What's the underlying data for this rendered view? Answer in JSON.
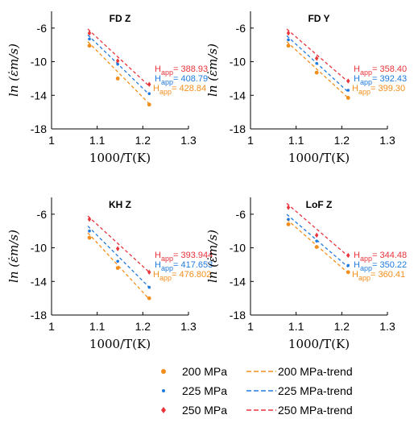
{
  "colors": {
    "series_200": "#F28E1C",
    "series_225": "#1F7BE0",
    "series_250": "#E8343A",
    "axis": "#000000"
  },
  "chart_data": [
    {
      "type": "scatter",
      "title": "FD Z",
      "xlabel": "1000/T(K)",
      "ylabel": "ln (ε̇m/s)",
      "xlim": [
        1,
        1.3
      ],
      "ylim": [
        -18,
        -4
      ],
      "xticks": [
        "1",
        "1.1",
        "1.2",
        "1.3"
      ],
      "yticks": [
        "-6",
        "-10",
        "-14",
        "-18"
      ],
      "grid": false,
      "series": [
        {
          "name": "200 MPa",
          "x": [
            1.083,
            1.145,
            1.214
          ],
          "y": [
            -8.1,
            -12.0,
            -15.1
          ],
          "trend_x": [
            1.083,
            1.214
          ],
          "trend_y": [
            -7.9,
            -15.0
          ],
          "h_label": "H",
          "h_sub": "app",
          "h_value": "= 428.84"
        },
        {
          "name": "225 MPa",
          "x": [
            1.083,
            1.145,
            1.214
          ],
          "y": [
            -7.3,
            -10.3,
            -13.8
          ],
          "trend_x": [
            1.083,
            1.214
          ],
          "trend_y": [
            -7.1,
            -13.9
          ],
          "h_label": "H",
          "h_sub": "app",
          "h_value": "= 408.79"
        },
        {
          "name": "250 MPa",
          "x": [
            1.083,
            1.145,
            1.214
          ],
          "y": [
            -6.6,
            -9.9,
            -12.7
          ],
          "trend_x": [
            1.083,
            1.214
          ],
          "trend_y": [
            -6.4,
            -12.9
          ],
          "h_label": "H",
          "h_sub": "app",
          "h_value": "= 388.93"
        }
      ]
    },
    {
      "type": "scatter",
      "title": "FD Y",
      "xlabel": "1000/T(K)",
      "ylabel": "ln (ε̇m/s)",
      "xlim": [
        1,
        1.3
      ],
      "ylim": [
        -18,
        -4
      ],
      "xticks": [
        "1",
        "1.1",
        "1.2",
        "1.3"
      ],
      "yticks": [
        "-6",
        "-10",
        "-14",
        "-18"
      ],
      "grid": false,
      "series": [
        {
          "name": "200 MPa",
          "x": [
            1.083,
            1.145,
            1.214
          ],
          "y": [
            -8.1,
            -11.3,
            -14.3
          ],
          "trend_x": [
            1.083,
            1.214
          ],
          "trend_y": [
            -7.9,
            -14.3
          ],
          "h_label": "H",
          "h_sub": "app",
          "h_value": "= 399.30"
        },
        {
          "name": "225 MPa",
          "x": [
            1.083,
            1.145,
            1.214
          ],
          "y": [
            -7.4,
            -10.2,
            -13.4
          ],
          "trend_x": [
            1.083,
            1.214
          ],
          "trend_y": [
            -7.2,
            -13.6
          ],
          "h_label": "H",
          "h_sub": "app",
          "h_value": "= 392.43"
        },
        {
          "name": "250 MPa",
          "x": [
            1.083,
            1.145,
            1.214
          ],
          "y": [
            -6.6,
            -9.6,
            -12.3
          ],
          "trend_x": [
            1.083,
            1.214
          ],
          "trend_y": [
            -6.4,
            -12.4
          ],
          "h_label": "H",
          "h_sub": "app",
          "h_value": "= 358.40"
        }
      ]
    },
    {
      "type": "scatter",
      "title": "KH Z",
      "xlabel": "1000/T(K)",
      "ylabel": "ln (ε̇m/s)",
      "xlim": [
        1,
        1.3
      ],
      "ylim": [
        -18,
        -4
      ],
      "xticks": [
        "1",
        "1.1",
        "1.2",
        "1.3"
      ],
      "yticks": [
        "-6",
        "-10",
        "-14",
        "-18"
      ],
      "grid": false,
      "series": [
        {
          "name": "200 MPa",
          "x": [
            1.083,
            1.145,
            1.214
          ],
          "y": [
            -8.8,
            -12.4,
            -16.0
          ],
          "trend_x": [
            1.083,
            1.214
          ],
          "trend_y": [
            -8.5,
            -16.1
          ],
          "h_label": "H",
          "h_sub": "app",
          "h_value": "= 476.802"
        },
        {
          "name": "225 MPa",
          "x": [
            1.083,
            1.145,
            1.214
          ],
          "y": [
            -8.0,
            -11.6,
            -14.7
          ],
          "trend_x": [
            1.083,
            1.214
          ],
          "trend_y": [
            -7.7,
            -14.7
          ],
          "h_label": "H",
          "h_sub": "app",
          "h_value": "= 417.653"
        },
        {
          "name": "250 MPa",
          "x": [
            1.083,
            1.145,
            1.214
          ],
          "y": [
            -6.6,
            -10.1,
            -12.9
          ],
          "trend_x": [
            1.083,
            1.214
          ],
          "trend_y": [
            -6.5,
            -12.9
          ],
          "h_label": "H",
          "h_sub": "app",
          "h_value": "= 393.944"
        }
      ]
    },
    {
      "type": "scatter",
      "title": "LoF Z",
      "xlabel": "1000/T(K)",
      "ylabel": "ln (ε̇m/s)",
      "xlim": [
        1,
        1.3
      ],
      "ylim": [
        -18,
        -4
      ],
      "xticks": [
        "1",
        "1.1",
        "1.2",
        "1.3"
      ],
      "yticks": [
        "-6",
        "-10",
        "-14",
        "-18"
      ],
      "grid": false,
      "series": [
        {
          "name": "200 MPa",
          "x": [
            1.083,
            1.145,
            1.214
          ],
          "y": [
            -7.2,
            -9.9,
            -12.9
          ],
          "trend_x": [
            1.083,
            1.214
          ],
          "trend_y": [
            -6.9,
            -13.0
          ],
          "h_label": "H",
          "h_sub": "app",
          "h_value": "= 360.41"
        },
        {
          "name": "225 MPa",
          "x": [
            1.083,
            1.145,
            1.214
          ],
          "y": [
            -6.6,
            -9.2,
            -12.1
          ],
          "trend_x": [
            1.083,
            1.214
          ],
          "trend_y": [
            -6.3,
            -12.3
          ],
          "h_label": "H",
          "h_sub": "app",
          "h_value": "= 350.22"
        },
        {
          "name": "250 MPa",
          "x": [
            1.083,
            1.145,
            1.214
          ],
          "y": [
            -5.2,
            -8.5,
            -10.9
          ],
          "trend_x": [
            1.083,
            1.214
          ],
          "trend_y": [
            -5.0,
            -11.0
          ],
          "h_label": "H",
          "h_sub": "app",
          "h_value": "= 344.48"
        }
      ]
    }
  ],
  "legend": {
    "placement": "bottom-center",
    "entries": [
      {
        "marker_label": "200 MPa",
        "trend_label": "200 MPa-trend",
        "color_key": "series_200",
        "marker": "dot"
      },
      {
        "marker_label": "225 MPa",
        "trend_label": "225 MPa-trend",
        "color_key": "series_225",
        "marker": "point"
      },
      {
        "marker_label": "250 MPa",
        "trend_label": "250 MPa-trend",
        "color_key": "series_250",
        "marker": "diamond"
      }
    ]
  }
}
